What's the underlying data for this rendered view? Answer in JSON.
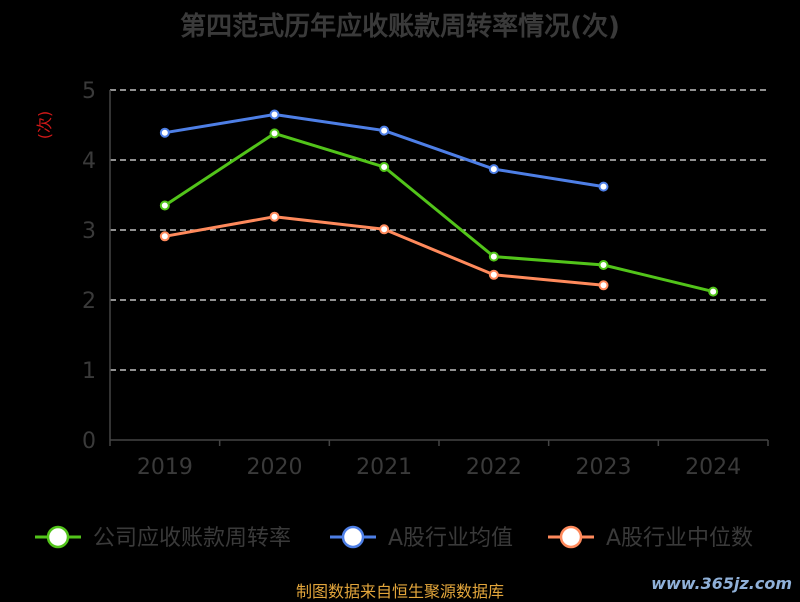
{
  "chart_data": {
    "type": "line",
    "title": "第四范式历年应收账款周转率情况(次)",
    "ylabel": "(次)",
    "categories": [
      "2019",
      "2020",
      "2021",
      "2022",
      "2023",
      "2024"
    ],
    "ylim": [
      0,
      5
    ],
    "yticks": [
      "0",
      "1",
      "2",
      "3",
      "4",
      "5"
    ],
    "grid": true,
    "legend_position": "bottom",
    "series": [
      {
        "name": "公司应收账款周转率",
        "color": "#52c41a",
        "values": [
          3.35,
          4.38,
          3.9,
          2.62,
          2.5,
          2.12
        ]
      },
      {
        "name": "A股行业均值",
        "color": "#4e7fe6",
        "values": [
          4.39,
          4.65,
          4.42,
          3.87,
          3.62,
          null
        ]
      },
      {
        "name": "A股行业中位数",
        "color": "#ff8a5c",
        "values": [
          2.91,
          3.19,
          3.01,
          2.36,
          2.21,
          null
        ]
      }
    ]
  },
  "footer": {
    "source": "制图数据来自恒生聚源数据库"
  },
  "watermark": {
    "text": "www.365jz.com"
  }
}
